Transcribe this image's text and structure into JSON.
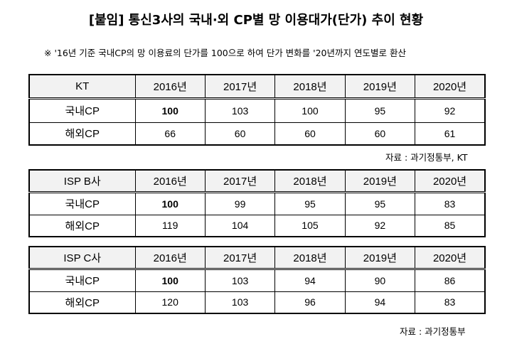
{
  "title": "[붙임] 통신3사의 국내·외 CP별 망 이용대가(단가) 추이 현황",
  "note": "※ '16년 기준 국내CP의 망 이용료의 단가를 100으로 하여 단가 변화를 '20년까지 연도별로 환산",
  "tables": [
    {
      "header": [
        "KT",
        "2016년",
        "2017년",
        "2018년",
        "2019년",
        "2020년"
      ],
      "rows": [
        [
          "국내CP",
          "100",
          "103",
          "100",
          "95",
          "92"
        ],
        [
          "해외CP",
          "66",
          "60",
          "60",
          "60",
          "61"
        ]
      ]
    },
    {
      "header": [
        "ISP B사",
        "2016년",
        "2017년",
        "2018년",
        "2019년",
        "2020년"
      ],
      "rows": [
        [
          "국내CP",
          "100",
          "99",
          "95",
          "95",
          "83"
        ],
        [
          "해외CP",
          "119",
          "104",
          "105",
          "92",
          "85"
        ]
      ]
    },
    {
      "header": [
        "ISP C사",
        "2016년",
        "2017년",
        "2018년",
        "2019년",
        "2020년"
      ],
      "rows": [
        [
          "국내CP",
          "100",
          "103",
          "94",
          "90",
          "86"
        ],
        [
          "해외CP",
          "120",
          "103",
          "96",
          "94",
          "83"
        ]
      ]
    }
  ],
  "sources": [
    "자료 : 과기정통부, KT",
    "자료 : 과기정통부"
  ]
}
